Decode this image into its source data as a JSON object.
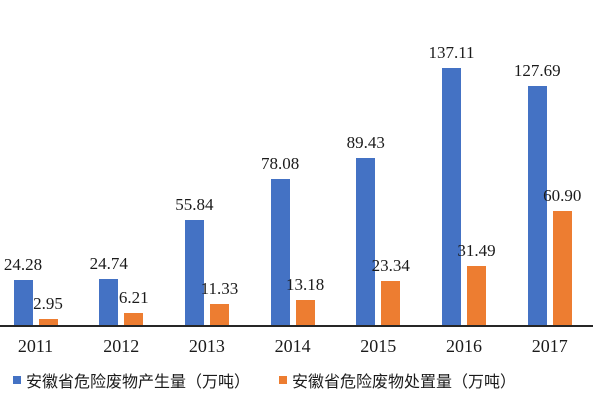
{
  "chart_data": {
    "type": "bar",
    "title": "",
    "xlabel": "",
    "ylabel": "",
    "ylim": [
      0,
      140
    ],
    "grid": false,
    "y_axis_visible": false,
    "legend_position": "bottom",
    "axis_color": "#262626",
    "text_color": "#1b1b1b",
    "background_color": "#ffffff",
    "categories": [
      "2011",
      "2012",
      "2013",
      "2014",
      "2015",
      "2016",
      "2017"
    ],
    "series": [
      {
        "name": "安徽省危险废物产生量（万吨）",
        "key": "produced",
        "color": "#4472C4",
        "values": [
          24.28,
          24.74,
          55.84,
          78.08,
          89.43,
          137.11,
          127.69
        ],
        "labels": [
          "24.28",
          "24.74",
          "55.84",
          "78.08",
          "89.43",
          "137.11",
          "127.69"
        ]
      },
      {
        "name": "安徽省危险废物处置量（万吨）",
        "key": "disposed",
        "color": "#ED7D31",
        "values": [
          2.95,
          6.21,
          11.33,
          13.18,
          23.34,
          31.49,
          60.9
        ],
        "labels": [
          "2.95",
          "6.21",
          "11.33",
          "13.18",
          "23.34",
          "31.49",
          "60.90"
        ]
      }
    ]
  }
}
